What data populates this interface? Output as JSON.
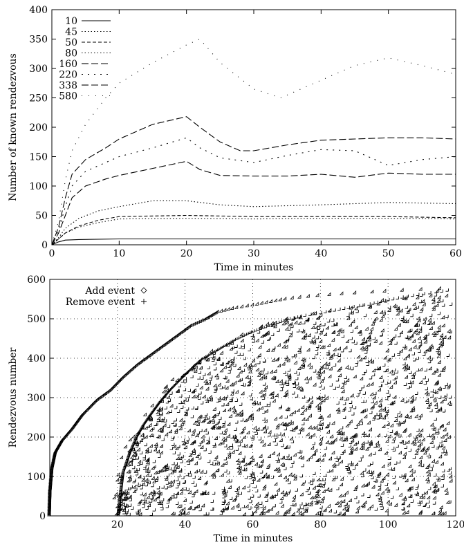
{
  "chart_data": [
    {
      "type": "line",
      "xlabel": "Time in minutes",
      "ylabel": "Number of known rendezvous",
      "xlim": [
        0,
        60
      ],
      "ylim": [
        0,
        400
      ],
      "xticks": [
        0,
        10,
        20,
        30,
        40,
        50,
        60
      ],
      "yticks": [
        0,
        50,
        100,
        150,
        200,
        250,
        300,
        350,
        400
      ],
      "legend_position": "top-left",
      "grid": false,
      "series": [
        {
          "name": "10",
          "dash": "solid",
          "x": [
            0,
            1,
            2,
            4,
            10,
            20,
            30,
            40,
            50,
            60
          ],
          "y": [
            0,
            5,
            8,
            9,
            10,
            10,
            10,
            10,
            10,
            10
          ]
        },
        {
          "name": "45",
          "dash": "dot",
          "x": [
            0,
            1,
            2,
            4,
            7,
            10,
            20,
            30,
            40,
            50,
            60
          ],
          "y": [
            0,
            10,
            20,
            30,
            38,
            44,
            45,
            44,
            45,
            45,
            44
          ]
        },
        {
          "name": "50",
          "dash": "dash",
          "x": [
            0,
            1,
            2,
            4,
            7,
            10,
            20,
            30,
            40,
            50,
            60
          ],
          "y": [
            0,
            10,
            20,
            32,
            42,
            48,
            50,
            48,
            48,
            48,
            46
          ]
        },
        {
          "name": "80",
          "dash": "dot",
          "x": [
            0,
            1,
            2,
            4,
            7,
            10,
            15,
            20,
            25,
            30,
            40,
            50,
            60
          ],
          "y": [
            0,
            12,
            28,
            45,
            58,
            65,
            75,
            75,
            68,
            65,
            68,
            72,
            70
          ]
        },
        {
          "name": "160",
          "dash": "longdash",
          "x": [
            0,
            1,
            2,
            3,
            5,
            8,
            10,
            15,
            20,
            22,
            25,
            30,
            35,
            40,
            45,
            50,
            55,
            60
          ],
          "y": [
            0,
            20,
            50,
            80,
            100,
            112,
            118,
            130,
            142,
            128,
            118,
            117,
            117,
            120,
            115,
            122,
            120,
            120
          ]
        },
        {
          "name": "220",
          "dash": "sparse",
          "x": [
            0,
            1,
            2,
            3,
            5,
            8,
            10,
            15,
            20,
            22,
            25,
            30,
            35,
            40,
            45,
            50,
            55,
            60
          ],
          "y": [
            0,
            25,
            65,
            100,
            125,
            140,
            150,
            165,
            182,
            165,
            148,
            140,
            152,
            162,
            160,
            135,
            145,
            150
          ]
        },
        {
          "name": "338",
          "dash": "longdash",
          "x": [
            0,
            1,
            2,
            3,
            5,
            8,
            10,
            15,
            20,
            22,
            25,
            28,
            30,
            35,
            40,
            45,
            50,
            55,
            60
          ],
          "y": [
            0,
            30,
            80,
            120,
            145,
            165,
            180,
            205,
            218,
            200,
            175,
            160,
            160,
            170,
            178,
            180,
            182,
            182,
            180
          ]
        },
        {
          "name": "580",
          "dash": "sparsedot",
          "x": [
            0,
            1,
            2,
            3,
            5,
            8,
            10,
            15,
            20,
            22,
            25,
            30,
            34,
            40,
            45,
            50,
            55,
            60
          ],
          "y": [
            0,
            40,
            110,
            160,
            205,
            250,
            275,
            310,
            340,
            350,
            310,
            265,
            250,
            280,
            305,
            318,
            305,
            290
          ]
        }
      ]
    },
    {
      "type": "scatter",
      "xlabel": "Time in minutes",
      "ylabel": "Rendezvous number",
      "xlim": [
        0,
        120
      ],
      "ylim": [
        0,
        600
      ],
      "xticks": [
        20,
        40,
        60,
        80,
        100,
        120
      ],
      "yticks": [
        0,
        100,
        200,
        300,
        400,
        500,
        600
      ],
      "legend_position": "top-left",
      "grid": true,
      "series": [
        {
          "name": "Add event",
          "marker": "diamond",
          "frontier": {
            "x": [
              0.2,
              0.4,
              1,
              2,
              4,
              7,
              10,
              14,
              18,
              22,
              26,
              30,
              34,
              38,
              42,
              46,
              50,
              55,
              60,
              65,
              70,
              75,
              80,
              85,
              90,
              95,
              100,
              105,
              110,
              115,
              118
            ],
            "y": [
              0,
              60,
              120,
              160,
              190,
              220,
              255,
              290,
              315,
              350,
              380,
              405,
              430,
              455,
              480,
              495,
              515,
              525,
              532,
              540,
              548,
              553,
              557,
              560,
              563,
              565,
              568,
              570,
              572,
              574,
              575
            ]
          },
          "approx_count": 1100
        },
        {
          "name": "Remove event",
          "marker": "plus",
          "frontier": {
            "x": [
              20.5,
              21,
              22,
              24,
              26,
              28,
              30,
              33,
              36,
              40,
              45,
              50,
              55,
              60,
              65,
              70,
              75,
              80,
              85,
              90,
              95,
              100,
              105,
              110,
              115,
              118
            ],
            "y": [
              0,
              40,
              110,
              160,
              200,
              230,
              255,
              290,
              320,
              355,
              395,
              420,
              445,
              465,
              480,
              495,
              505,
              512,
              520,
              528,
              535,
              545,
              553,
              560,
              566,
              570
            ]
          },
          "approx_count": 1000
        }
      ]
    }
  ]
}
